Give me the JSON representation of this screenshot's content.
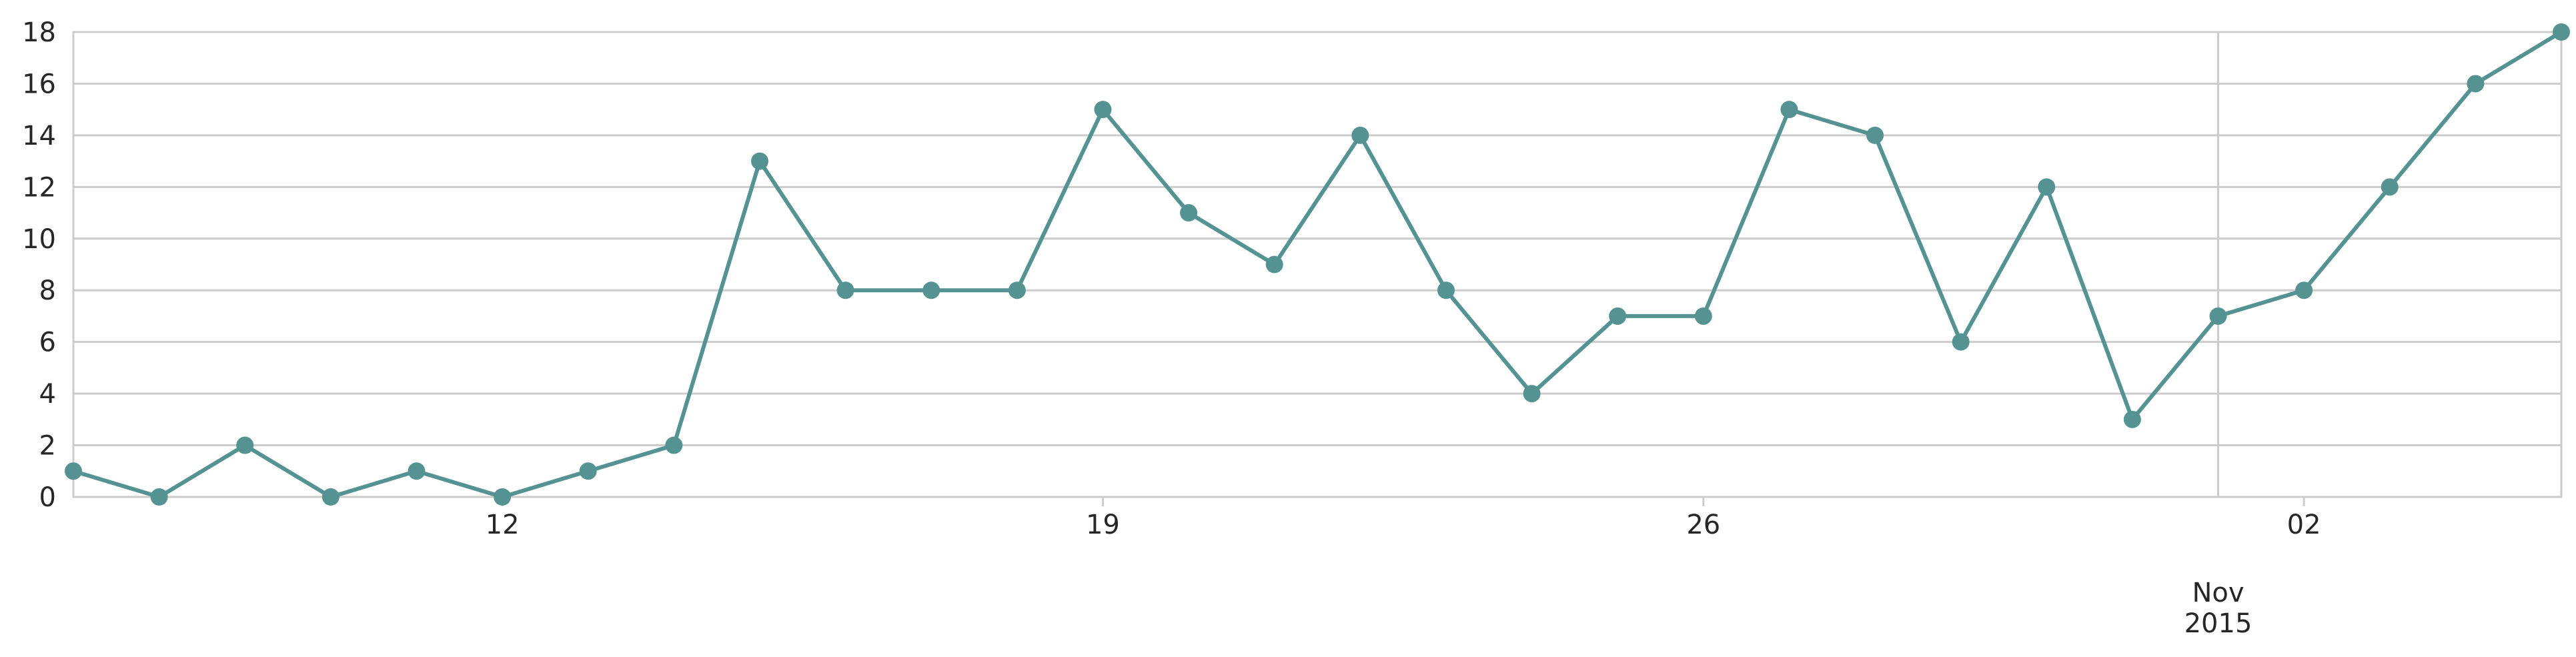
{
  "chart_data": {
    "type": "line",
    "title": "",
    "xlabel": "",
    "ylabel": "",
    "x": [
      "2015-10-07",
      "2015-10-08",
      "2015-10-09",
      "2015-10-10",
      "2015-10-11",
      "2015-10-12",
      "2015-10-13",
      "2015-10-14",
      "2015-10-15",
      "2015-10-16",
      "2015-10-17",
      "2015-10-18",
      "2015-10-19",
      "2015-10-20",
      "2015-10-21",
      "2015-10-22",
      "2015-10-23",
      "2015-10-24",
      "2015-10-25",
      "2015-10-26",
      "2015-10-27",
      "2015-10-28",
      "2015-10-29",
      "2015-10-30",
      "2015-10-31",
      "2015-11-01",
      "2015-11-02",
      "2015-11-03",
      "2015-11-04",
      "2015-11-05"
    ],
    "series": [
      {
        "values": [
          1,
          0,
          2,
          0,
          1,
          0,
          1,
          2,
          13,
          8,
          8,
          8,
          15,
          11,
          9,
          14,
          8,
          4,
          7,
          7,
          15,
          14,
          6,
          12,
          3,
          7,
          8,
          12,
          16,
          18
        ],
        "color": "#559393"
      }
    ],
    "xlim": [
      "2015-10-07",
      "2015-11-05"
    ],
    "ylim": [
      0,
      18
    ],
    "y_ticks": [
      0,
      2,
      4,
      6,
      8,
      10,
      12,
      14,
      16,
      18
    ],
    "x_ticks": [
      {
        "date": "2015-10-12",
        "label": "12"
      },
      {
        "date": "2015-10-19",
        "label": "19"
      },
      {
        "date": "2015-10-26",
        "label": "26"
      },
      {
        "date": "2015-11-02",
        "label": "02"
      }
    ],
    "x_major_ticks": [
      {
        "date": "2015-11-01",
        "label_line1": "Nov",
        "label_line2": "2015"
      }
    ],
    "grid": "horizontal",
    "legend": "none"
  }
}
